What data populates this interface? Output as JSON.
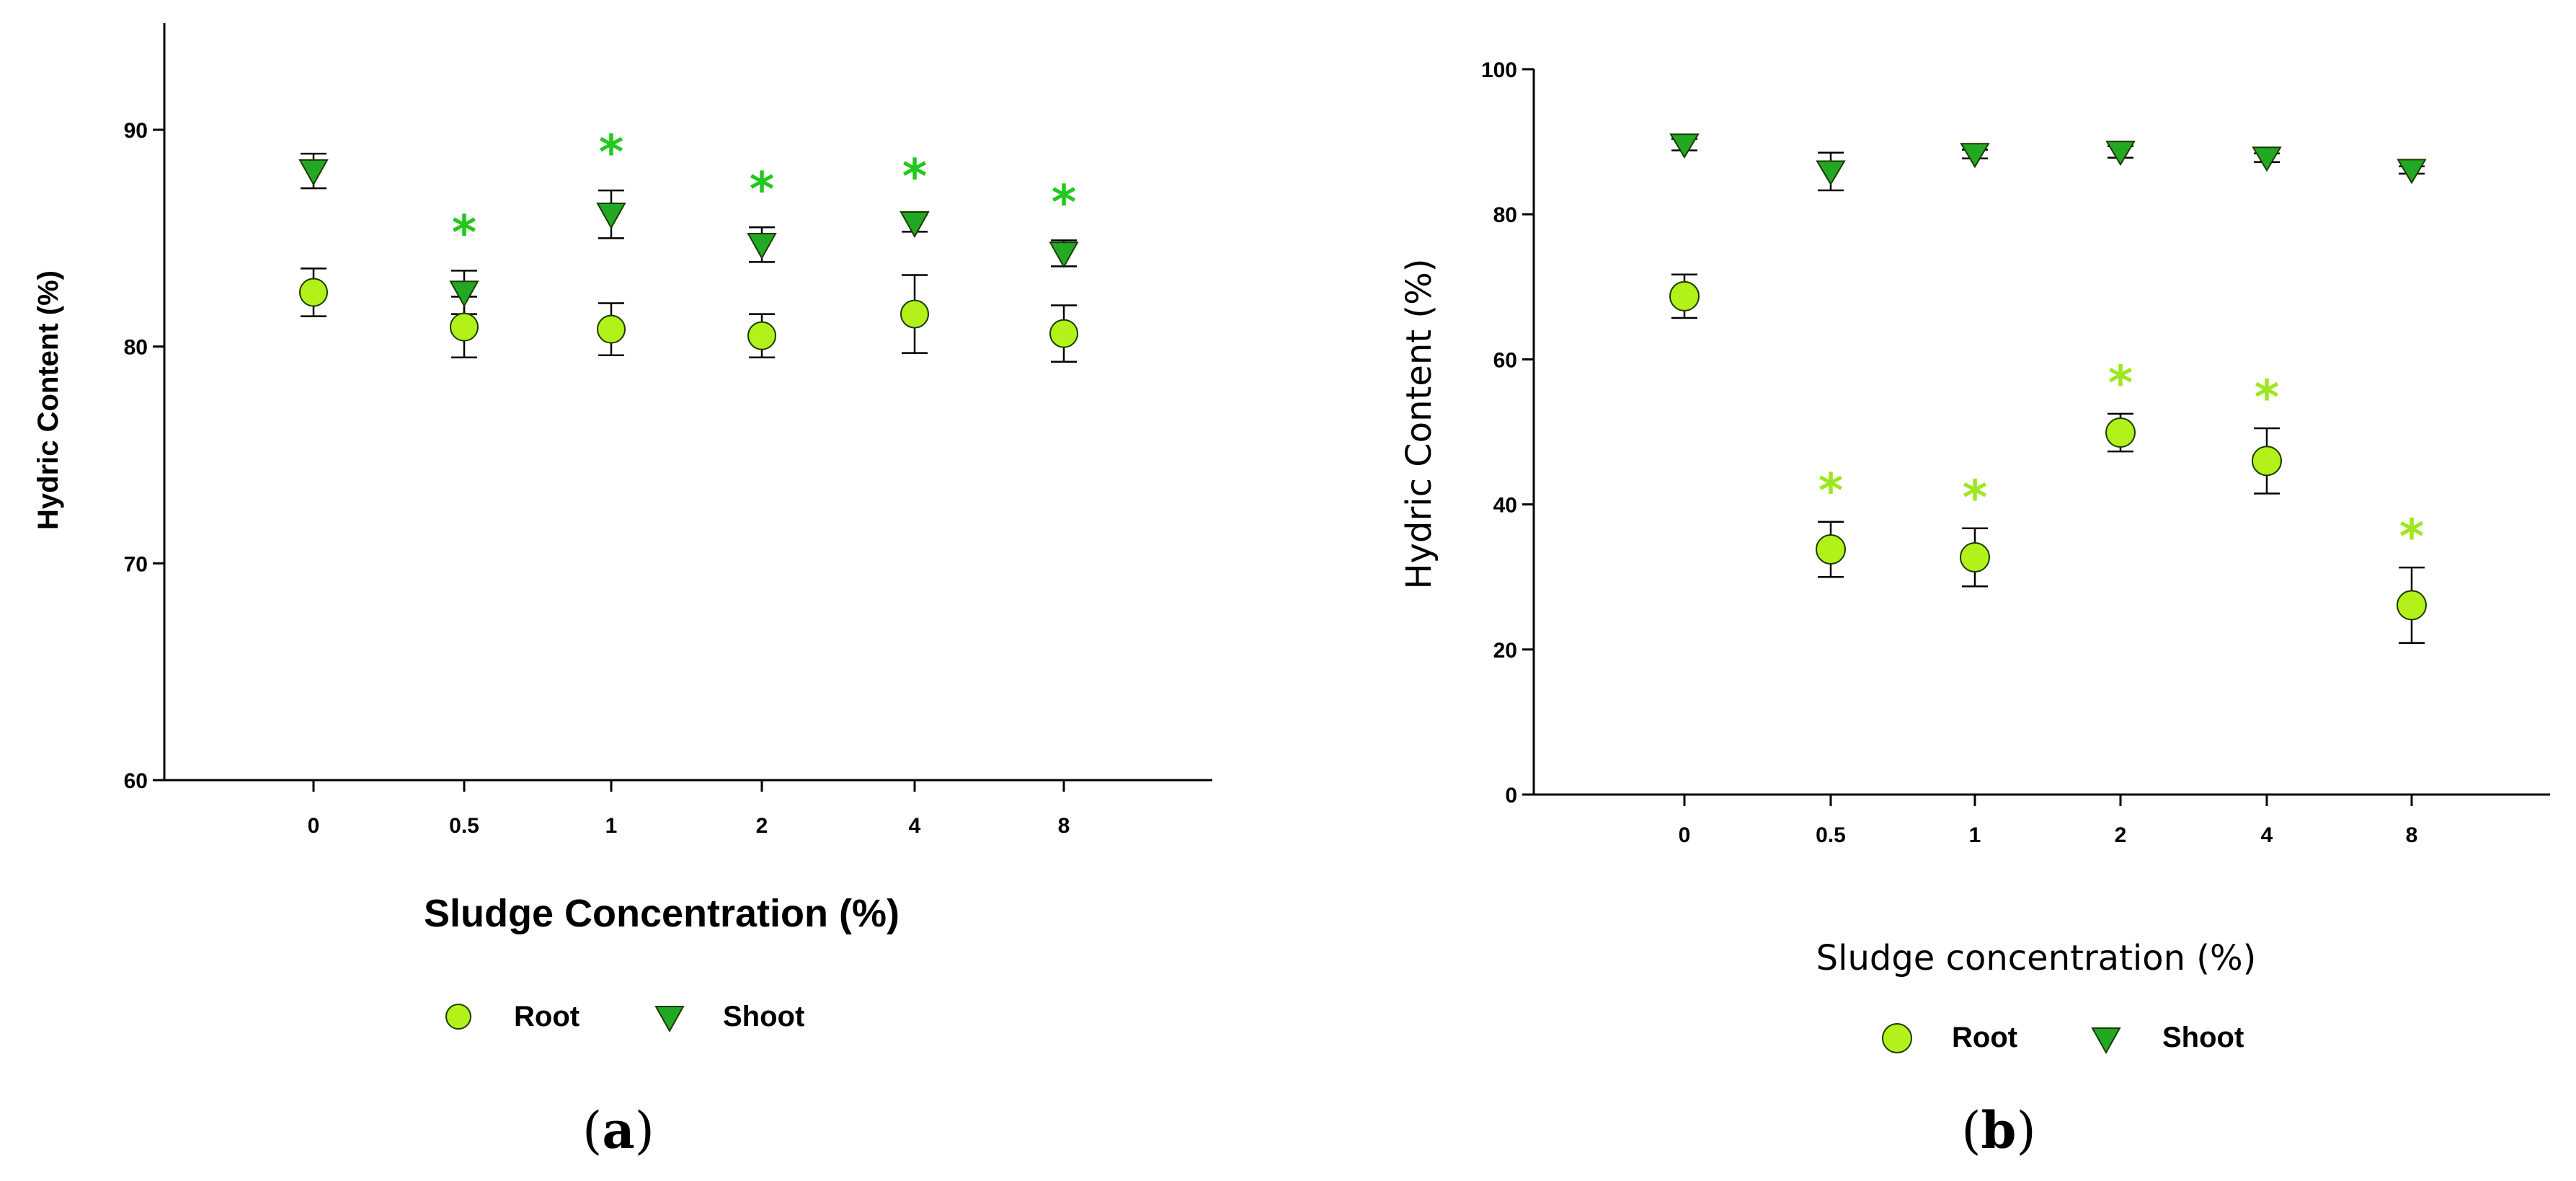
{
  "colors": {
    "root_fill": "#b2f21a",
    "shoot_fill": "#22a822",
    "marker_stroke": "#1a3a00",
    "star_a": "#22c81e",
    "star_b": "#9ee61e",
    "axis": "#000000"
  },
  "chart_data": [
    {
      "type": "scatter",
      "panel_label": "a",
      "title": "",
      "xlabel": "Sludge  Concentration (%)",
      "ylabel": "Hydric Content (%)",
      "categories": [
        "0",
        "0.5",
        "1",
        "2",
        "4",
        "8"
      ],
      "ylim": [
        60,
        95
      ],
      "yticks": [
        60,
        70,
        80,
        90
      ],
      "grid": false,
      "legend_position": "bottom",
      "series": [
        {
          "name": "Root",
          "marker": "circle",
          "values": [
            82.5,
            80.9,
            80.8,
            80.5,
            81.5,
            80.6
          ],
          "errors": [
            1.1,
            1.4,
            1.2,
            1.0,
            1.8,
            1.3
          ],
          "significant": [
            false,
            false,
            false,
            false,
            false,
            false
          ]
        },
        {
          "name": "Shoot",
          "marker": "triangle-down",
          "values": [
            88.1,
            82.5,
            86.1,
            84.7,
            85.7,
            84.3
          ],
          "errors": [
            0.8,
            1.0,
            1.1,
            0.8,
            0.4,
            0.6
          ],
          "significant": [
            false,
            true,
            true,
            true,
            true,
            true
          ]
        }
      ],
      "annotation_symbol": "*"
    },
    {
      "type": "scatter",
      "panel_label": "b",
      "title": "",
      "xlabel": "Sludge concentration (%)",
      "ylabel": "Hydric Content (%)",
      "categories": [
        "0",
        "0.5",
        "1",
        "2",
        "4",
        "8"
      ],
      "ylim": [
        0,
        100
      ],
      "yticks": [
        0,
        20,
        40,
        60,
        80,
        100
      ],
      "grid": false,
      "legend_position": "bottom",
      "series": [
        {
          "name": "Root",
          "marker": "circle",
          "values": [
            68.7,
            33.8,
            32.7,
            49.9,
            46.0,
            26.1
          ],
          "errors": [
            3.0,
            3.8,
            4.0,
            2.6,
            4.5,
            5.2
          ],
          "significant": [
            false,
            true,
            true,
            true,
            true,
            true
          ]
        },
        {
          "name": "Shoot",
          "marker": "triangle-down",
          "values": [
            89.6,
            85.9,
            88.3,
            88.6,
            87.8,
            86.1
          ],
          "errors": [
            0.8,
            2.6,
            0.6,
            0.8,
            0.6,
            0.5
          ],
          "significant": [
            false,
            false,
            false,
            false,
            false,
            false
          ]
        }
      ],
      "annotation_symbol": "*"
    }
  ]
}
